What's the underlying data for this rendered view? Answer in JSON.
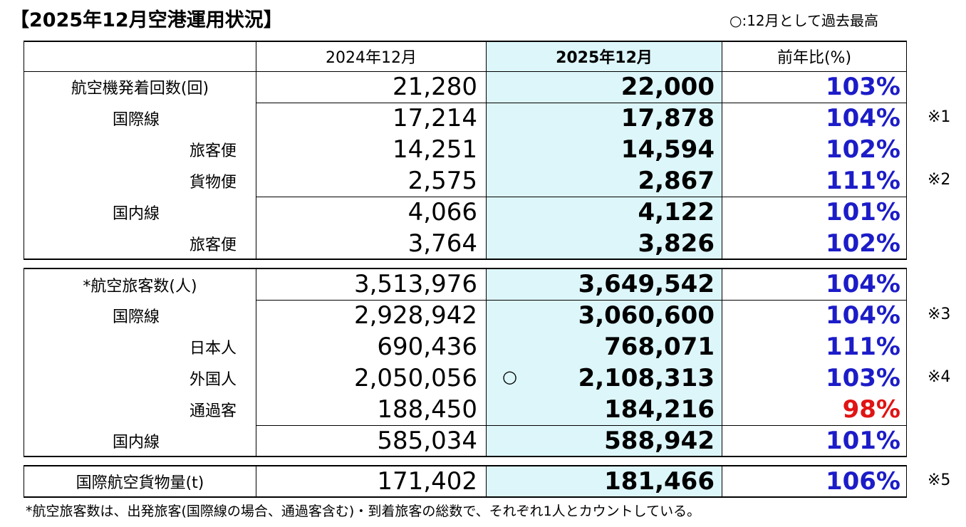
{
  "title": "【2025年12月空港運用状況】",
  "legend": "○:12月として過去最高",
  "header": {
    "label": "",
    "prev": "2024年12月",
    "cur": "2025年12月",
    "ratio": "前年比(%)"
  },
  "blocks": [
    {
      "rows": [
        {
          "label": "航空機発着回数(回)",
          "level": 0,
          "prev": "21,280",
          "cur": "22,000",
          "ratio": "103%",
          "mark": "",
          "note": ""
        },
        {
          "label": "国際線",
          "level": 1,
          "prev": "17,214",
          "cur": "17,878",
          "ratio": "104%",
          "mark": "",
          "note": "※1"
        },
        {
          "label": "旅客便",
          "level": 2,
          "prev": "14,251",
          "cur": "14,594",
          "ratio": "102%",
          "mark": "",
          "note": ""
        },
        {
          "label": "貨物便",
          "level": 2,
          "prev": "2,575",
          "cur": "2,867",
          "ratio": "111%",
          "mark": "",
          "note": "※2"
        },
        {
          "label": "国内線",
          "level": 1,
          "prev": "4,066",
          "cur": "4,122",
          "ratio": "101%",
          "mark": "",
          "note": ""
        },
        {
          "label": "旅客便",
          "level": 2,
          "prev": "3,764",
          "cur": "3,826",
          "ratio": "102%",
          "mark": "",
          "note": ""
        }
      ]
    },
    {
      "rows": [
        {
          "label": "*航空旅客数(人)",
          "level": 0,
          "prev": "3,513,976",
          "cur": "3,649,542",
          "ratio": "104%",
          "mark": "",
          "note": ""
        },
        {
          "label": "国際線",
          "level": 1,
          "prev": "2,928,942",
          "cur": "3,060,600",
          "ratio": "104%",
          "mark": "",
          "note": "※3"
        },
        {
          "label": "日本人",
          "level": 2,
          "prev": "690,436",
          "cur": "768,071",
          "ratio": "111%",
          "mark": "",
          "note": ""
        },
        {
          "label": "外国人",
          "level": 2,
          "prev": "2,050,056",
          "cur": "2,108,313",
          "ratio": "103%",
          "mark": "○",
          "note": "※4"
        },
        {
          "label": "通過客",
          "level": 2,
          "prev": "188,450",
          "cur": "184,216",
          "ratio": "98%",
          "mark": "",
          "note": ""
        },
        {
          "label": "国内線",
          "level": 1,
          "prev": "585,034",
          "cur": "588,942",
          "ratio": "101%",
          "mark": "",
          "note": ""
        }
      ]
    },
    {
      "rows": [
        {
          "label": "国際航空貨物量(t)",
          "level": 0,
          "prev": "171,402",
          "cur": "181,466",
          "ratio": "106%",
          "mark": "",
          "note": "※5"
        }
      ]
    }
  ],
  "footnote": "*航空旅客数は、出発旅客(国際線の場合、通過客含む)・到着旅客の総数で、それぞれ1人とカウントしている。",
  "colors": {
    "current_column_bg": "#dcf6f9",
    "ratio_up": "#1c1cc8",
    "ratio_down": "#e01414"
  }
}
